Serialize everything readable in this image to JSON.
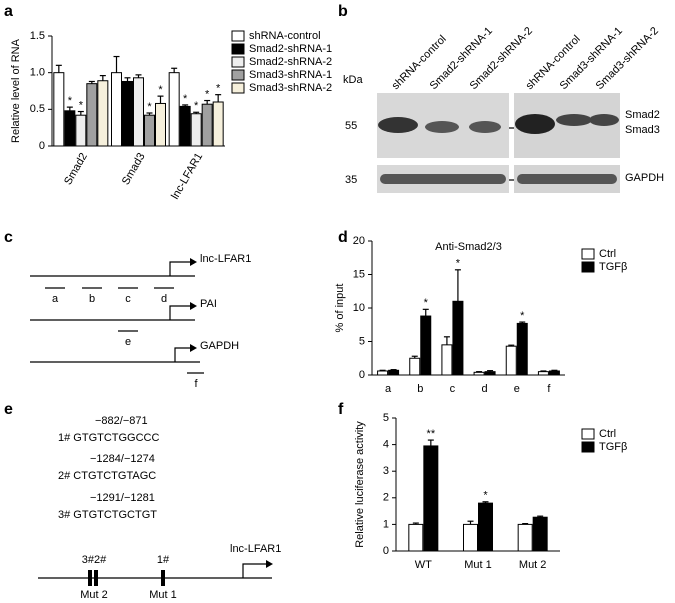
{
  "panel_labels": [
    "a",
    "b",
    "c",
    "d",
    "e",
    "f"
  ],
  "chart_data": [
    {
      "type": "bar",
      "ylabel": "Relative level of RNA",
      "categories": [
        "Smad2",
        "Smad3",
        "lnc-LFAR1"
      ],
      "ylim": [
        0,
        1.5
      ],
      "yticks": [
        0,
        0.5,
        {
          "value": 1,
          "label": "1.0"
        },
        1.5
      ],
      "series": [
        {
          "name": "shRNA-control",
          "color": "#ffffff",
          "values": [
            1.0,
            1.0,
            1.0
          ],
          "errors": [
            0.1,
            0.22,
            0.06
          ],
          "labels": [
            null,
            null,
            null
          ]
        },
        {
          "name": "Smad2-shRNA-1",
          "color": "#000000",
          "values": [
            0.48,
            0.88,
            0.54
          ],
          "errors": [
            0.05,
            0.05,
            0.02
          ],
          "labels": [
            "*",
            null,
            "*"
          ]
        },
        {
          "name": "Smad2-shRNA-2",
          "color": "#eeeeee",
          "values": [
            0.42,
            0.93,
            0.44
          ],
          "errors": [
            0.05,
            0.04,
            0.02
          ],
          "labels": [
            "*",
            null,
            "*"
          ]
        },
        {
          "name": "Smad3-shRNA-1",
          "color": "#a0a0a0",
          "values": [
            0.85,
            0.42,
            0.57
          ],
          "errors": [
            0.03,
            0.03,
            0.05
          ],
          "labels": [
            null,
            "*",
            "*"
          ]
        },
        {
          "name": "Smad3-shRNA-2",
          "color": "#f6f0dc",
          "values": [
            0.89,
            0.58,
            0.6
          ],
          "errors": [
            0.07,
            0.1,
            0.1
          ],
          "labels": [
            null,
            "*",
            "*"
          ]
        }
      ]
    },
    {
      "type": "bar",
      "title": "Anti-Smad2/3",
      "ylabel": "% of input",
      "categories": [
        "a",
        "b",
        "c",
        "d",
        "e",
        "f"
      ],
      "ylim": [
        0,
        20
      ],
      "yticks": [
        0,
        5,
        10,
        15,
        20
      ],
      "series": [
        {
          "name": "Ctrl",
          "color": "#ffffff",
          "values": [
            0.6,
            2.5,
            4.5,
            0.4,
            4.3,
            0.5
          ],
          "errors": [
            0.1,
            0.3,
            1.2,
            0.1,
            0.15,
            0.1
          ],
          "labels": [
            null,
            null,
            null,
            null,
            null,
            null
          ]
        },
        {
          "name": "TGFβ",
          "color": "#000000",
          "values": [
            0.7,
            8.8,
            11.0,
            0.5,
            7.7,
            0.6
          ],
          "errors": [
            0.1,
            1.0,
            4.7,
            0.15,
            0.2,
            0.1
          ],
          "labels": [
            null,
            "*",
            "*",
            null,
            "*",
            null
          ]
        }
      ]
    },
    {
      "type": "bar",
      "ylabel": "Relative luciferase activity",
      "categories": [
        "WT",
        "Mut 1",
        "Mut 2"
      ],
      "ylim": [
        0,
        5
      ],
      "yticks": [
        0,
        1,
        2,
        3,
        4,
        5
      ],
      "series": [
        {
          "name": "Ctrl",
          "color": "#ffffff",
          "values": [
            1.0,
            1.0,
            1.0
          ],
          "errors": [
            0.05,
            0.12,
            0.03
          ],
          "labels": [
            null,
            null,
            null
          ]
        },
        {
          "name": "TGFβ",
          "color": "#000000",
          "values": [
            3.95,
            1.8,
            1.27
          ],
          "errors": [
            0.22,
            0.05,
            0.04
          ],
          "labels": [
            "**",
            "*",
            null
          ]
        }
      ]
    }
  ],
  "blot": {
    "lanes": [
      "shRNA-control",
      "Smad2-shRNA-1",
      "Smad2-shRNA-2",
      "shRNA-control",
      "Smad3-shRNA-1",
      "Smad3-shRNA-2"
    ],
    "unit": "kDa",
    "markers": [
      "55",
      "35"
    ],
    "bands": [
      "Smad2",
      "Smad3",
      "GAPDH"
    ]
  },
  "promoter_diagram": {
    "genes": [
      "lnc-LFAR1",
      "PAI",
      "GAPDH"
    ],
    "regions": [
      "a",
      "b",
      "c",
      "d",
      "e",
      "f"
    ]
  },
  "motif_diagram": {
    "sites": [
      {
        "position": "−882/−871",
        "sequence": "1# GTGTCTGGCCC"
      },
      {
        "position": "−1284/−1274",
        "sequence": "2# CTGTCTGTAGC"
      },
      {
        "position": "−1291/−1281",
        "sequence": "3# GTGTCTGCTGT"
      }
    ],
    "site_labels": [
      "3#2#",
      "1#"
    ],
    "mutants": [
      "Mut 2",
      "Mut 1"
    ],
    "gene": "lnc-LFAR1"
  }
}
